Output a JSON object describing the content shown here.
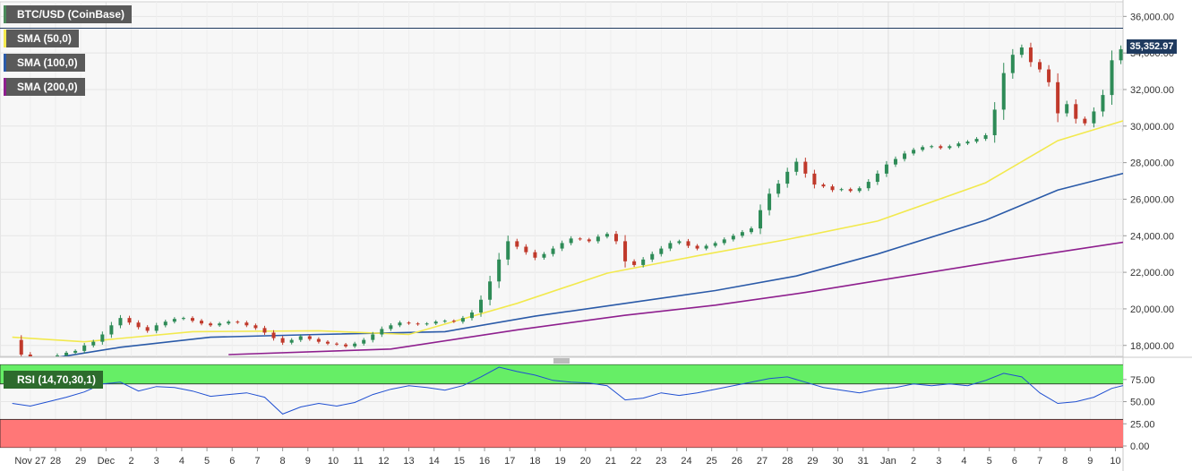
{
  "title": "BTC/USD (CoinBase)",
  "indicators": [
    {
      "label": "SMA (50,0)",
      "color": "#f2e94e"
    },
    {
      "label": "SMA (100,0)",
      "color": "#2a5aa8"
    },
    {
      "label": "SMA (200,0)",
      "color": "#8e1f8e"
    }
  ],
  "rsi_label": "RSI (14,70,30,1)",
  "last_price": "35,352.97",
  "colors": {
    "up": "#2e8b57",
    "down": "#c0392b",
    "sma50": "#f2e94e",
    "sma100": "#2a5aa8",
    "sma200": "#8e1f8e",
    "rsi_line": "#1f4fd1",
    "overbought_zone": "#66ee66",
    "oversold_zone": "#ff7777"
  },
  "chart_data": [
    {
      "type": "candlestick",
      "x_ticks": [
        "Nov 27",
        "28",
        "29",
        "Dec",
        "2",
        "3",
        "4",
        "5",
        "6",
        "7",
        "8",
        "9",
        "10",
        "11",
        "12",
        "13",
        "14",
        "15",
        "16",
        "17",
        "18",
        "19",
        "20",
        "21",
        "22",
        "23",
        "24",
        "25",
        "26",
        "27",
        "28",
        "29",
        "30",
        "31",
        "Jan",
        "2",
        "3",
        "4",
        "5",
        "6",
        "7",
        "8",
        "9",
        "10"
      ],
      "y_ticks": [
        "18,000.00",
        "20,000.00",
        "22,000.00",
        "24,000.00",
        "26,000.00",
        "28,000.00",
        "30,000.00",
        "32,000.00",
        "34,000.00",
        "36,000.00"
      ],
      "ylim": [
        17400,
        36800
      ],
      "x_day_range": [
        -1.2,
        43.3
      ],
      "closes": [
        [
          -1.0,
          18300
        ],
        [
          -0.5,
          17500
        ],
        [
          0.0,
          17200
        ],
        [
          0.5,
          17300
        ],
        [
          1.0,
          17250
        ],
        [
          1.5,
          17450
        ],
        [
          2.0,
          17600
        ],
        [
          2.5,
          17700
        ],
        [
          3.0,
          18000
        ],
        [
          3.5,
          18200
        ],
        [
          4.0,
          18600
        ],
        [
          4.5,
          19100
        ],
        [
          5.0,
          19500
        ],
        [
          5.5,
          19250
        ],
        [
          6.0,
          19000
        ],
        [
          6.5,
          18800
        ],
        [
          7.0,
          19100
        ],
        [
          7.5,
          19300
        ],
        [
          8.0,
          19450
        ],
        [
          8.5,
          19500
        ],
        [
          9.0,
          19350
        ],
        [
          9.5,
          19200
        ],
        [
          10.0,
          19100
        ],
        [
          10.5,
          19200
        ],
        [
          11.0,
          19300
        ],
        [
          11.5,
          19250
        ],
        [
          12.0,
          19100
        ],
        [
          12.5,
          18950
        ],
        [
          13.0,
          18700
        ],
        [
          13.5,
          18400
        ],
        [
          14.0,
          18150
        ],
        [
          14.5,
          18300
        ],
        [
          15.0,
          18500
        ],
        [
          15.5,
          18350
        ],
        [
          16.0,
          18200
        ],
        [
          16.5,
          18100
        ],
        [
          17.0,
          18050
        ],
        [
          17.5,
          17950
        ],
        [
          18.0,
          18100
        ],
        [
          18.5,
          18300
        ],
        [
          19.0,
          18600
        ],
        [
          19.5,
          18900
        ],
        [
          20.0,
          19100
        ],
        [
          20.5,
          19250
        ],
        [
          21.0,
          19200
        ],
        [
          21.5,
          19150
        ],
        [
          22.0,
          19200
        ],
        [
          22.5,
          19300
        ],
        [
          23.0,
          19350
        ],
        [
          23.5,
          19300
        ],
        [
          24.0,
          19500
        ],
        [
          24.5,
          19800
        ],
        [
          25.0,
          20500
        ],
        [
          25.5,
          21500
        ],
        [
          26.0,
          22700
        ],
        [
          26.5,
          23700
        ],
        [
          27.0,
          23400
        ],
        [
          27.5,
          23100
        ],
        [
          28.0,
          22800
        ],
        [
          28.5,
          23000
        ],
        [
          29.0,
          23300
        ],
        [
          29.5,
          23600
        ],
        [
          30.0,
          23850
        ],
        [
          30.5,
          23800
        ],
        [
          31.0,
          23700
        ],
        [
          31.5,
          23950
        ],
        [
          32.0,
          24100
        ],
        [
          32.5,
          23700
        ],
        [
          33.0,
          22600
        ],
        [
          33.5,
          22400
        ],
        [
          34.0,
          22700
        ],
        [
          34.5,
          23000
        ],
        [
          35.0,
          23300
        ],
        [
          35.5,
          23600
        ],
        [
          36.0,
          23700
        ],
        [
          36.5,
          23450
        ],
        [
          37.0,
          23300
        ],
        [
          37.5,
          23450
        ],
        [
          38.0,
          23600
        ],
        [
          38.5,
          23800
        ],
        [
          39.0,
          24000
        ],
        [
          39.5,
          24200
        ],
        [
          40.0,
          24400
        ],
        [
          40.5,
          25400
        ],
        [
          41.0,
          26300
        ],
        [
          41.5,
          26850
        ],
        [
          42.0,
          27500
        ],
        [
          42.5,
          28050
        ],
        [
          43.0,
          27400
        ],
        [
          43.5,
          26800
        ],
        [
          44.0,
          26700
        ],
        [
          44.5,
          26500
        ],
        [
          45.0,
          26550
        ],
        [
          45.5,
          26450
        ],
        [
          46.0,
          26600
        ],
        [
          46.5,
          26950
        ],
        [
          47.0,
          27400
        ],
        [
          47.5,
          27900
        ],
        [
          48.0,
          28200
        ],
        [
          48.5,
          28500
        ],
        [
          49.0,
          28700
        ],
        [
          49.5,
          28850
        ],
        [
          50.0,
          28900
        ],
        [
          50.5,
          28800
        ],
        [
          51.0,
          28900
        ],
        [
          51.5,
          29050
        ],
        [
          52.0,
          29150
        ],
        [
          52.5,
          29300
        ],
        [
          53.0,
          29500
        ],
        [
          53.5,
          30900
        ],
        [
          54.0,
          32900
        ],
        [
          54.5,
          33900
        ],
        [
          55.0,
          34300
        ],
        [
          55.5,
          33500
        ],
        [
          56.0,
          33100
        ],
        [
          56.5,
          32400
        ],
        [
          57.0,
          30700
        ],
        [
          57.5,
          31200
        ],
        [
          58.0,
          30400
        ],
        [
          58.5,
          30150
        ],
        [
          59.0,
          30800
        ],
        [
          59.5,
          31700
        ],
        [
          60.0,
          33600
        ],
        [
          60.5,
          34200
        ],
        [
          61.0,
          35353
        ]
      ],
      "sma50": [
        [
          -1.0,
          18450
        ],
        [
          3.0,
          18200
        ],
        [
          9.0,
          18750
        ],
        [
          16.0,
          18800
        ],
        [
          21.0,
          18600
        ],
        [
          27.0,
          20300
        ],
        [
          32.0,
          21950
        ],
        [
          37.0,
          22900
        ],
        [
          42.0,
          23800
        ],
        [
          47.0,
          24800
        ],
        [
          53.0,
          26900
        ],
        [
          57.0,
          29200
        ],
        [
          61.0,
          30400
        ]
      ],
      "sma100": [
        [
          -1.0,
          16950
        ],
        [
          5.0,
          17900
        ],
        [
          10.0,
          18450
        ],
        [
          16.0,
          18600
        ],
        [
          23.0,
          18750
        ],
        [
          28.0,
          19600
        ],
        [
          33.0,
          20300
        ],
        [
          38.0,
          21000
        ],
        [
          42.5,
          21800
        ],
        [
          47.0,
          23000
        ],
        [
          53.0,
          24850
        ],
        [
          57.0,
          26500
        ],
        [
          61.0,
          27500
        ]
      ],
      "sma200": [
        [
          11.0,
          17500
        ],
        [
          20.0,
          17800
        ],
        [
          27.0,
          18850
        ],
        [
          33.0,
          19650
        ],
        [
          38.0,
          20200
        ],
        [
          43.0,
          20900
        ],
        [
          48.0,
          21700
        ],
        [
          54.0,
          22650
        ],
        [
          58.0,
          23250
        ],
        [
          61.0,
          23700
        ]
      ]
    },
    {
      "type": "line",
      "title": "RSI (14,70,30,1)",
      "y_ticks": [
        "0.00",
        "25.00",
        "50.00",
        "75.00"
      ],
      "ylim": [
        -2,
        92
      ],
      "overbought": 70,
      "oversold": 30,
      "values": [
        [
          -1.0,
          48
        ],
        [
          0.0,
          45
        ],
        [
          1.0,
          50
        ],
        [
          2.0,
          55
        ],
        [
          3.0,
          61
        ],
        [
          4.0,
          70
        ],
        [
          5.0,
          72
        ],
        [
          6.0,
          62
        ],
        [
          7.0,
          67
        ],
        [
          8.0,
          66
        ],
        [
          9.0,
          62
        ],
        [
          10.0,
          56
        ],
        [
          11.0,
          58
        ],
        [
          12.0,
          60
        ],
        [
          13.0,
          55
        ],
        [
          14.0,
          36
        ],
        [
          15.0,
          44
        ],
        [
          16.0,
          48
        ],
        [
          17.0,
          45
        ],
        [
          18.0,
          49
        ],
        [
          19.0,
          58
        ],
        [
          20.0,
          64
        ],
        [
          21.0,
          68
        ],
        [
          22.0,
          66
        ],
        [
          23.0,
          63
        ],
        [
          24.0,
          68
        ],
        [
          25.0,
          78
        ],
        [
          26.0,
          89
        ],
        [
          27.0,
          84
        ],
        [
          28.0,
          80
        ],
        [
          29.0,
          74
        ],
        [
          30.0,
          72
        ],
        [
          31.0,
          71
        ],
        [
          32.0,
          68
        ],
        [
          33.0,
          52
        ],
        [
          34.0,
          54
        ],
        [
          35.0,
          60
        ],
        [
          36.0,
          57
        ],
        [
          37.0,
          60
        ],
        [
          38.0,
          64
        ],
        [
          39.0,
          68
        ],
        [
          40.0,
          72
        ],
        [
          41.0,
          76
        ],
        [
          42.0,
          78
        ],
        [
          43.0,
          72
        ],
        [
          44.0,
          66
        ],
        [
          45.0,
          63
        ],
        [
          46.0,
          60
        ],
        [
          47.0,
          64
        ],
        [
          48.0,
          66
        ],
        [
          49.0,
          70
        ],
        [
          50.0,
          68
        ],
        [
          51.0,
          70
        ],
        [
          52.0,
          68
        ],
        [
          53.0,
          74
        ],
        [
          54.0,
          82
        ],
        [
          55.0,
          78
        ],
        [
          56.0,
          60
        ],
        [
          57.0,
          48
        ],
        [
          58.0,
          50
        ],
        [
          59.0,
          55
        ],
        [
          60.0,
          65
        ],
        [
          61.0,
          70
        ]
      ]
    }
  ]
}
